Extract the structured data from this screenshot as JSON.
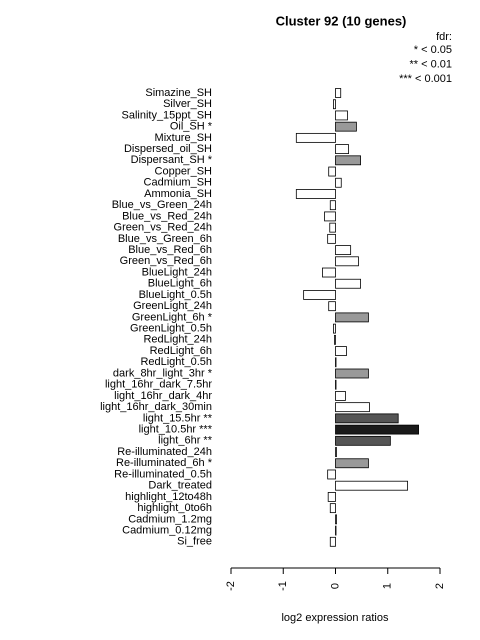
{
  "chart_data": {
    "type": "bar",
    "orientation": "horizontal",
    "title": "Cluster 92 (10 genes)",
    "legend_title": "fdr:",
    "legend_entries": [
      "* < 0.05",
      "** < 0.01",
      "*** < 0.001"
    ],
    "xlabel": "log2 expression ratios",
    "xlim": [
      -2,
      2
    ],
    "xticks": [
      -2,
      -1,
      0,
      1,
      2
    ],
    "categories": [
      "Simazine_SH",
      "Silver_SH",
      "Salinity_15ppt_SH",
      "Oil_SH *",
      "Mixture_SH",
      "Dispersed_oil_SH",
      "Dispersant_SH *",
      "Copper_SH",
      "Cadmium_SH",
      "Ammonia_SH",
      "Blue_vs_Green_24h",
      "Blue_vs_Red_24h",
      "Green_vs_Red_24h",
      "Blue_vs_Green_6h",
      "Blue_vs_Red_6h",
      "Green_vs_Red_6h",
      "BlueLight_24h",
      "BlueLight_6h",
      "BlueLight_0.5h",
      "GreenLight_24h",
      "GreenLight_6h *",
      "GreenLight_0.5h",
      "RedLight_24h",
      "RedLight_6h",
      "RedLight_0.5h",
      "dark_8hr_light_3hr *",
      "light_16hr_dark_7.5hr",
      "light_16hr_dark_4hr",
      "light_16hr_dark_30min",
      "light_15.5hr **",
      "light_10.5hr ***",
      "light_6hr **",
      "Re-illuminated_24h",
      "Re-illuminated_6h *",
      "Re-illuminated_0.5h",
      "Dark_treated",
      "highlight_12to48h",
      "highlight_0to6h",
      "Cadmium_1.2mg",
      "Cadmium_0.12mg",
      "Si_free"
    ],
    "values": [
      0.1,
      -0.04,
      0.23,
      0.4,
      -0.75,
      0.25,
      0.48,
      -0.13,
      0.11,
      -0.75,
      -0.1,
      -0.21,
      -0.11,
      -0.15,
      0.29,
      0.44,
      -0.25,
      0.48,
      -0.61,
      -0.13,
      0.63,
      -0.04,
      -0.02,
      0.21,
      0.01,
      0.63,
      0.01,
      0.19,
      0.65,
      1.2,
      1.59,
      1.05,
      0.02,
      0.63,
      -0.15,
      1.38,
      -0.14,
      -0.1,
      0.02,
      0.01,
      -0.1
    ],
    "colors": [
      "#ffffff",
      "#ffffff",
      "#ffffff",
      "#999999",
      "#ffffff",
      "#ffffff",
      "#999999",
      "#ffffff",
      "#ffffff",
      "#ffffff",
      "#ffffff",
      "#ffffff",
      "#ffffff",
      "#ffffff",
      "#ffffff",
      "#ffffff",
      "#ffffff",
      "#ffffff",
      "#ffffff",
      "#ffffff",
      "#999999",
      "#ffffff",
      "#ffffff",
      "#ffffff",
      "#ffffff",
      "#999999",
      "#ffffff",
      "#ffffff",
      "#ffffff",
      "#555555",
      "#1a1a1a",
      "#555555",
      "#ffffff",
      "#999999",
      "#ffffff",
      "#ffffff",
      "#ffffff",
      "#ffffff",
      "#ffffff",
      "#ffffff",
      "#ffffff"
    ]
  }
}
